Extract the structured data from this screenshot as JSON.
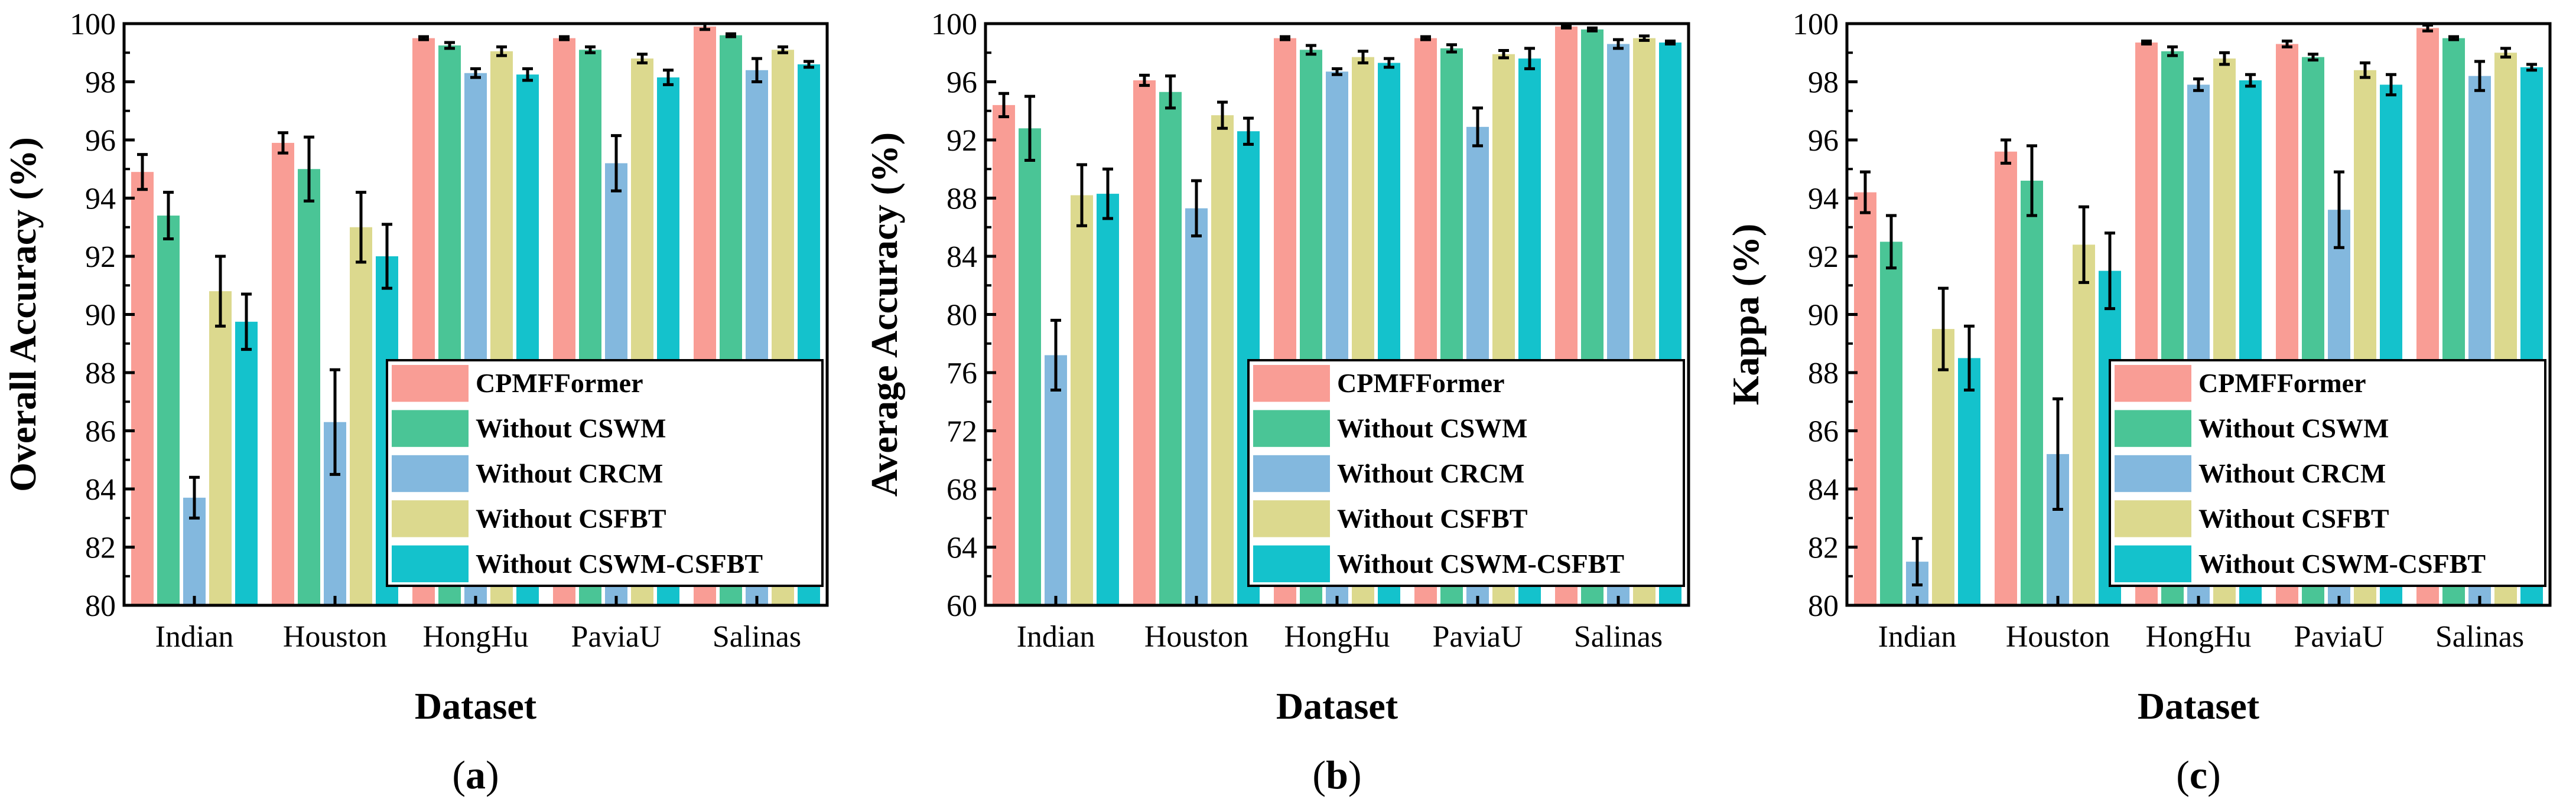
{
  "chart_data": [
    {
      "type": "bar",
      "panel_label": "(a)",
      "title": "",
      "xlabel": "Dataset",
      "ylabel": "Overall Accuracy (%)",
      "ylim": [
        80,
        100
      ],
      "yticks": [
        80,
        82,
        84,
        86,
        88,
        90,
        92,
        94,
        96,
        98,
        100
      ],
      "categories": [
        "Indian",
        "Houston",
        "HongHu",
        "PaviaU",
        "Salinas"
      ],
      "legend_position": "bottom-right",
      "series": [
        {
          "name": "CPMFFormer",
          "color": "#f99d95",
          "values": [
            94.9,
            95.9,
            99.5,
            99.5,
            99.9
          ],
          "errors": [
            0.6,
            0.35,
            0.05,
            0.05,
            0.1
          ]
        },
        {
          "name": "Without CSWM",
          "color": "#4ac596",
          "values": [
            93.4,
            95.0,
            99.25,
            99.1,
            99.6
          ],
          "errors": [
            0.8,
            1.1,
            0.1,
            0.1,
            0.05
          ]
        },
        {
          "name": "Without CRCM",
          "color": "#83b8de",
          "values": [
            83.7,
            86.3,
            98.3,
            95.2,
            98.4
          ],
          "errors": [
            0.7,
            1.8,
            0.15,
            0.95,
            0.4
          ]
        },
        {
          "name": "Without CSFBT",
          "color": "#dcd98e",
          "values": [
            90.8,
            93.0,
            99.05,
            98.8,
            99.1
          ],
          "errors": [
            1.2,
            1.2,
            0.15,
            0.15,
            0.1
          ]
        },
        {
          "name": "Without CSWM-CSFBT",
          "color": "#14c2cc",
          "values": [
            89.75,
            92.0,
            98.25,
            98.15,
            98.6
          ],
          "errors": [
            0.95,
            1.1,
            0.2,
            0.25,
            0.1
          ]
        }
      ]
    },
    {
      "type": "bar",
      "panel_label": "(b)",
      "title": "",
      "xlabel": "Dataset",
      "ylabel": "Average Accuracy (%)",
      "ylim": [
        60,
        100
      ],
      "yticks": [
        60,
        64,
        68,
        72,
        76,
        80,
        84,
        88,
        92,
        96,
        100
      ],
      "categories": [
        "Indian",
        "Houston",
        "HongHu",
        "PaviaU",
        "Salinas"
      ],
      "legend_position": "bottom-right",
      "series": [
        {
          "name": "CPMFFormer",
          "color": "#f99d95",
          "values": [
            94.4,
            96.1,
            99.0,
            99.0,
            99.8
          ],
          "errors": [
            0.8,
            0.35,
            0.1,
            0.1,
            0.1
          ]
        },
        {
          "name": "Without CSWM",
          "color": "#4ac596",
          "values": [
            92.8,
            95.3,
            98.2,
            98.3,
            99.6
          ],
          "errors": [
            2.2,
            1.1,
            0.3,
            0.25,
            0.1
          ]
        },
        {
          "name": "Without CRCM",
          "color": "#83b8de",
          "values": [
            77.2,
            87.3,
            96.7,
            92.9,
            98.6
          ],
          "errors": [
            2.4,
            1.9,
            0.2,
            1.3,
            0.3
          ]
        },
        {
          "name": "Without CSFBT",
          "color": "#dcd98e",
          "values": [
            88.2,
            93.7,
            97.7,
            97.9,
            99.0
          ],
          "errors": [
            2.1,
            0.9,
            0.4,
            0.25,
            0.15
          ]
        },
        {
          "name": "Without CSWM-CSFBT",
          "color": "#14c2cc",
          "values": [
            88.3,
            92.6,
            97.3,
            97.6,
            98.7
          ],
          "errors": [
            1.7,
            0.9,
            0.3,
            0.7,
            0.1
          ]
        }
      ]
    },
    {
      "type": "bar",
      "panel_label": "(c)",
      "title": "",
      "xlabel": "Dataset",
      "ylabel": "Kappa (%)",
      "ylim": [
        80,
        100
      ],
      "yticks": [
        80,
        82,
        84,
        86,
        88,
        90,
        92,
        94,
        96,
        98,
        100
      ],
      "categories": [
        "Indian",
        "Houston",
        "HongHu",
        "PaviaU",
        "Salinas"
      ],
      "legend_position": "bottom-right",
      "series": [
        {
          "name": "CPMFFormer",
          "color": "#f99d95",
          "values": [
            94.2,
            95.6,
            99.35,
            99.3,
            99.85
          ],
          "errors": [
            0.7,
            0.4,
            0.05,
            0.1,
            0.1
          ]
        },
        {
          "name": "Without CSWM",
          "color": "#4ac596",
          "values": [
            92.5,
            94.6,
            99.05,
            98.85,
            99.5
          ],
          "errors": [
            0.9,
            1.2,
            0.15,
            0.1,
            0.05
          ]
        },
        {
          "name": "Without CRCM",
          "color": "#83b8de",
          "values": [
            81.5,
            85.2,
            97.9,
            93.6,
            98.2
          ],
          "errors": [
            0.8,
            1.9,
            0.2,
            1.3,
            0.5
          ]
        },
        {
          "name": "Without CSFBT",
          "color": "#dcd98e",
          "values": [
            89.5,
            92.4,
            98.8,
            98.4,
            99.0
          ],
          "errors": [
            1.4,
            1.3,
            0.2,
            0.25,
            0.15
          ]
        },
        {
          "name": "Without CSWM-CSFBT",
          "color": "#14c2cc",
          "values": [
            88.5,
            91.5,
            98.05,
            97.9,
            98.5
          ],
          "errors": [
            1.1,
            1.3,
            0.2,
            0.35,
            0.1
          ]
        }
      ]
    }
  ]
}
